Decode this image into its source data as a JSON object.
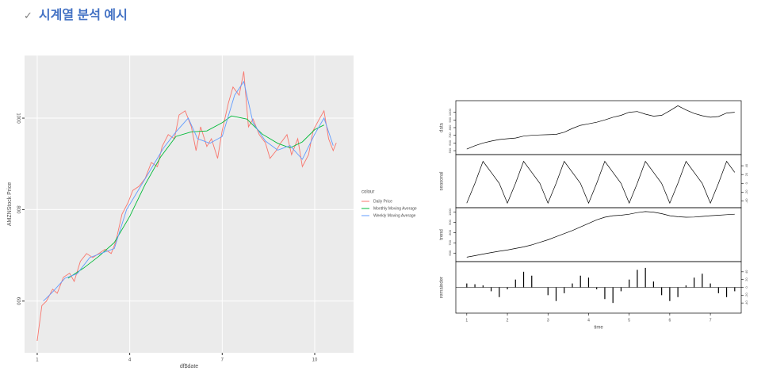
{
  "header": {
    "marker": "✓",
    "title": "시계열 분석 예시"
  },
  "chart_data": [
    {
      "type": "line",
      "y_label": "AMZNStock Price",
      "x_label": "df$date",
      "legend_title": "colour",
      "xlim": [
        0.59,
        11.26
      ],
      "xticks": [
        1,
        4,
        7,
        10
      ],
      "ylim": [
        487,
        1137
      ],
      "yticks": [
        600,
        800,
        1000
      ],
      "grid": true,
      "series": [
        {
          "name": "Daily Price",
          "color": "#f8766d",
          "x": [
            1.0,
            1.15,
            1.3,
            1.5,
            1.65,
            1.85,
            2.05,
            2.2,
            2.4,
            2.6,
            2.8,
            3.0,
            3.2,
            3.4,
            3.55,
            3.75,
            3.95,
            4.1,
            4.3,
            4.5,
            4.7,
            4.9,
            5.05,
            5.25,
            5.45,
            5.6,
            5.8,
            6.0,
            6.15,
            6.3,
            6.5,
            6.65,
            6.85,
            7.0,
            7.2,
            7.35,
            7.55,
            7.7,
            7.85,
            8.0,
            8.2,
            8.4,
            8.55,
            8.75,
            8.9,
            9.1,
            9.25,
            9.45,
            9.6,
            9.8,
            9.95,
            10.15,
            10.3,
            10.45,
            10.6,
            10.7
          ],
          "values": [
            513,
            590,
            600,
            626,
            617,
            652,
            661,
            643,
            687,
            704,
            695,
            704,
            713,
            704,
            730,
            790,
            816,
            842,
            851,
            868,
            903,
            894,
            938,
            964,
            955,
            1007,
            1016,
            981,
            929,
            981,
            938,
            955,
            912,
            973,
            1033,
            1068,
            1050,
            1102,
            981,
            998,
            964,
            946,
            912,
            929,
            946,
            964,
            920,
            955,
            894,
            920,
            973,
            998,
            1016,
            955,
            929,
            946
          ]
        },
        {
          "name": "Monthly Moving Average",
          "color": "#00ba38",
          "x": [
            2.0,
            2.5,
            3.0,
            3.5,
            4.0,
            4.5,
            5.0,
            5.5,
            6.0,
            6.5,
            7.0,
            7.3,
            7.8,
            8.3,
            8.8,
            9.2,
            9.6,
            10.0,
            10.3
          ],
          "values": [
            650,
            672,
            698,
            728,
            785,
            855,
            915,
            960,
            970,
            972,
            990,
            1005,
            998,
            965,
            945,
            935,
            948,
            975,
            985
          ]
        },
        {
          "name": "Weekly Moving Average",
          "color": "#619cff",
          "x": [
            1.2,
            1.5,
            1.9,
            2.3,
            2.7,
            3.1,
            3.5,
            3.9,
            4.3,
            4.7,
            5.1,
            5.5,
            5.9,
            6.2,
            6.6,
            7.0,
            7.4,
            7.7,
            8.0,
            8.4,
            8.8,
            9.2,
            9.6,
            10.0,
            10.3,
            10.6
          ],
          "values": [
            600,
            620,
            650,
            660,
            695,
            705,
            715,
            800,
            845,
            890,
            935,
            970,
            1000,
            955,
            945,
            960,
            1050,
            1080,
            990,
            950,
            930,
            940,
            910,
            965,
            1000,
            940
          ]
        }
      ]
    },
    {
      "type": "decomposition",
      "x_label": "time",
      "xlim": [
        0.73,
        7.76
      ],
      "xticks": [
        1,
        2,
        3,
        4,
        5,
        6,
        7
      ],
      "x": [
        1.0,
        1.2,
        1.4,
        1.6,
        1.8,
        2.0,
        2.2,
        2.4,
        2.6,
        2.8,
        3.0,
        3.2,
        3.4,
        3.6,
        3.8,
        4.0,
        4.2,
        4.4,
        4.6,
        4.8,
        5.0,
        5.2,
        5.4,
        5.6,
        5.8,
        6.0,
        6.2,
        6.4,
        6.6,
        6.8,
        7.0,
        7.2,
        7.4,
        7.6
      ],
      "panels": [
        {
          "name": "data",
          "type": "line",
          "ylim": [
            480,
            1120
          ],
          "yticks": [
            500,
            600,
            700,
            800,
            900,
            1000
          ],
          "values": [
            520,
            565,
            600,
            625,
            645,
            655,
            665,
            690,
            700,
            705,
            708,
            712,
            740,
            790,
            830,
            850,
            870,
            900,
            935,
            960,
            1000,
            1010,
            975,
            950,
            960,
            1020,
            1085,
            1030,
            985,
            955,
            935,
            945,
            990,
            1000
          ]
        },
        {
          "name": "seasonal",
          "type": "line",
          "ylim": [
            -50,
            60
          ],
          "yticks": [
            -40,
            -20,
            0,
            20,
            40
          ],
          "values": [
            -45,
            0,
            50,
            25,
            0,
            -45,
            0,
            50,
            25,
            0,
            -45,
            0,
            50,
            25,
            0,
            -45,
            0,
            50,
            25,
            0,
            -45,
            0,
            50,
            25,
            0,
            -45,
            0,
            50,
            25,
            0,
            -45,
            0,
            50,
            25
          ]
        },
        {
          "name": "trend",
          "type": "line",
          "ylim": [
            540,
            1020
          ],
          "yticks": [
            600,
            700,
            800,
            900,
            1000
          ],
          "values": [
            560,
            575,
            590,
            605,
            618,
            630,
            645,
            660,
            680,
            705,
            730,
            760,
            790,
            820,
            855,
            890,
            925,
            950,
            965,
            970,
            980,
            995,
            1005,
            1000,
            985,
            965,
            955,
            950,
            952,
            958,
            965,
            970,
            975,
            980
          ]
        },
        {
          "name": "remainder",
          "type": "bar",
          "ylim": [
            -60,
            60
          ],
          "yticks": [
            -40,
            -20,
            0,
            20,
            40
          ],
          "values": [
            10,
            8,
            5,
            -10,
            -25,
            -5,
            20,
            40,
            30,
            0,
            -20,
            -35,
            -15,
            10,
            30,
            25,
            -5,
            -30,
            -40,
            -10,
            20,
            45,
            50,
            15,
            -20,
            -35,
            -25,
            5,
            25,
            35,
            10,
            -15,
            -25,
            -10
          ]
        }
      ]
    }
  ]
}
